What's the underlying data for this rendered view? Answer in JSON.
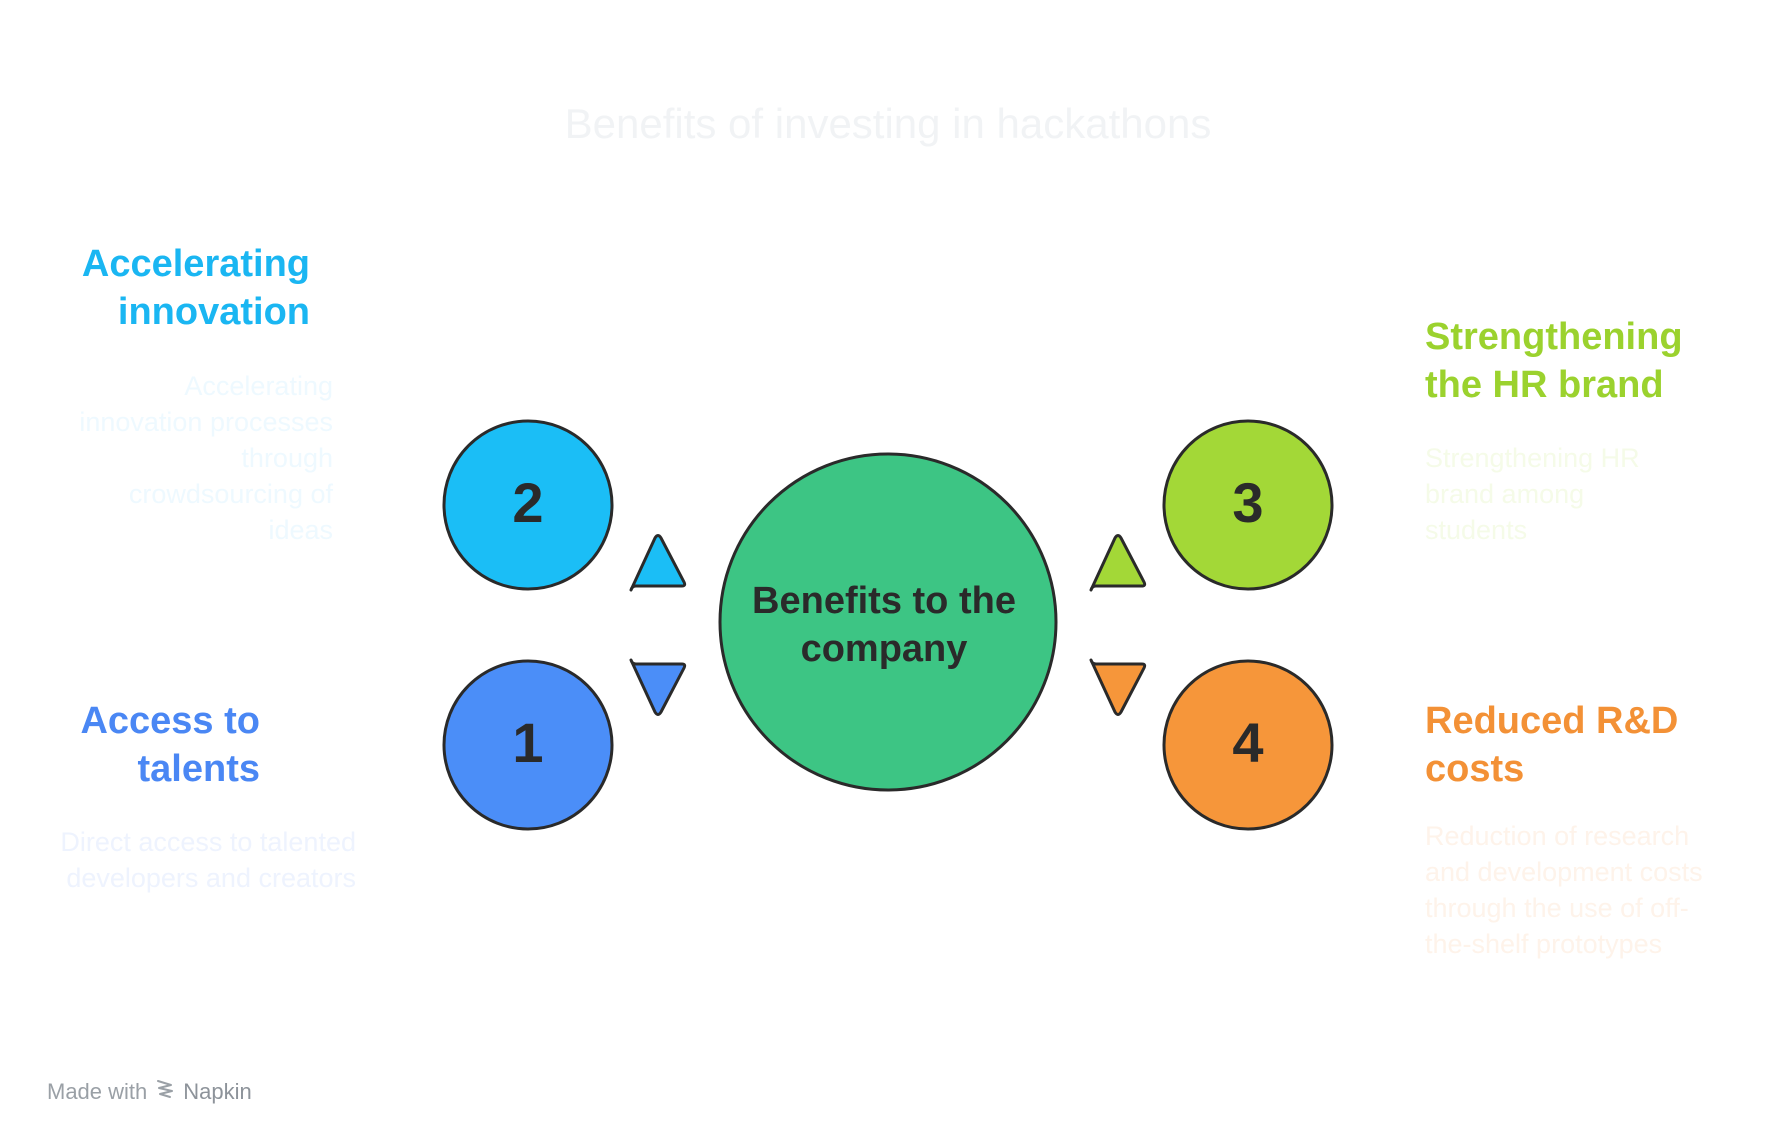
{
  "title": "Benefits of investing in hackathons",
  "center": {
    "label_line1": "Benefits to the",
    "label_line2": "company",
    "color": "#3dc584"
  },
  "items": [
    {
      "number": "2",
      "heading": "Accelerating innovation",
      "description": "Accelerating innovation processes through crowdsourcing of ideas",
      "color": "#1bbef6",
      "text_color": "#1ab6f2",
      "desc_color": "#eef9ff",
      "side": "left",
      "position": "top"
    },
    {
      "number": "1",
      "heading": "Access to talents",
      "description": "Direct access to talented developers and creators",
      "color": "#4b8ef8",
      "text_color": "#4a87f4",
      "desc_color": "#eef3fe",
      "side": "left",
      "position": "bottom"
    },
    {
      "number": "3",
      "heading": "Strengthening the HR brand",
      "description": "Strengthening HR brand among students",
      "color": "#a3d837",
      "text_color": "#9bd22e",
      "desc_color": "#f5fbe8",
      "side": "right",
      "position": "top"
    },
    {
      "number": "4",
      "heading": "Reduced R&D costs",
      "description": "Reduction of research and development costs through the use of off-the-shelf prototypes",
      "color": "#f6963a",
      "text_color": "#f39136",
      "desc_color": "#fef3ea",
      "side": "right",
      "position": "bottom"
    }
  ],
  "footer": {
    "made_with": "Made with",
    "brand": "Napkin",
    "logo_icon": "napkin-logo-icon"
  }
}
